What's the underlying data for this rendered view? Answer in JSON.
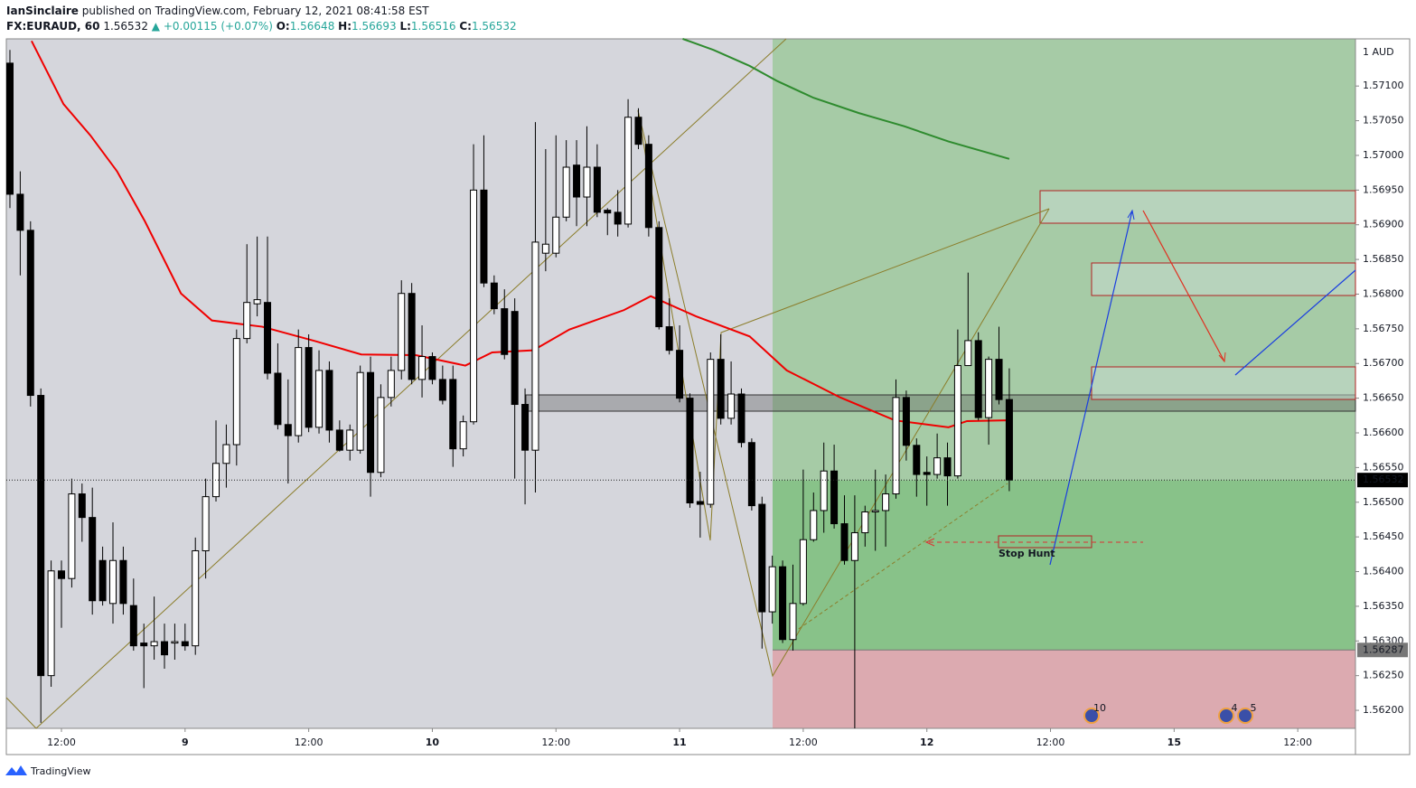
{
  "header": {
    "author": "IanSinclaire",
    "published": "published on TradingView.com, February 12, 2021 08:41:58 EST",
    "symbol": "FX:EURAUD, 60",
    "last": "1.56532",
    "change": "+0.00115 (+0.07%)",
    "ohlc": [
      {
        "key": "O:",
        "val": "1.56648"
      },
      {
        "key": "H:",
        "val": "1.56693"
      },
      {
        "key": "L:",
        "val": "1.56516"
      },
      {
        "key": "C:",
        "val": "1.56532"
      }
    ]
  },
  "chart_data": {
    "type": "candlestick",
    "open": [
      1.57133,
      1.56944,
      1.56892,
      1.56654,
      1.5625,
      1.56401,
      1.5639,
      1.56512,
      1.56478,
      1.56416,
      1.56354,
      1.56416,
      1.56351,
      1.56297,
      1.56293,
      1.56299,
      1.56297,
      1.56299,
      1.56293,
      1.5643,
      1.56508,
      1.56556,
      1.56583,
      1.56736,
      1.56786,
      1.56788,
      1.56686,
      1.56612,
      1.56596,
      1.56723,
      1.56608,
      1.5669,
      1.56604,
      1.56575,
      1.56575,
      1.56687,
      1.56543,
      1.56651,
      1.5669,
      1.56801,
      1.56677,
      1.5671,
      1.56677,
      1.56677,
      1.56577,
      1.56616,
      1.5695,
      1.56816,
      1.56779,
      1.56775,
      1.56641,
      1.56575,
      1.56859,
      1.56859,
      1.56911,
      1.56986,
      1.5694,
      1.56983,
      1.56921,
      1.56918,
      1.56901,
      1.57055,
      1.57016,
      1.56896,
      1.56753,
      1.56719,
      1.5665,
      1.56501,
      1.56497,
      1.56706,
      1.56621,
      1.56656,
      1.56586,
      1.56497,
      1.56342,
      1.56407,
      1.56302,
      1.56354,
      1.56446,
      1.56488,
      1.56545,
      1.56469,
      1.56416,
      1.56456,
      1.56486,
      1.56488,
      1.56512,
      1.56651,
      1.56582,
      1.56543,
      1.5654,
      1.56564,
      1.56538,
      1.56697,
      1.56733,
      1.56622,
      1.56706,
      1.56648
    ],
    "high": [
      1.57152,
      1.56977,
      1.56905,
      1.56664,
      1.56416,
      1.56416,
      1.56534,
      1.56527,
      1.56521,
      1.56436,
      1.56471,
      1.56436,
      1.5639,
      1.56325,
      1.56364,
      1.56325,
      1.56325,
      1.56325,
      1.56449,
      1.56534,
      1.56618,
      1.56612,
      1.56749,
      1.56872,
      1.56883,
      1.56883,
      1.56729,
      1.56677,
      1.56749,
      1.56742,
      1.56719,
      1.56703,
      1.56618,
      1.56612,
      1.56697,
      1.5671,
      1.5667,
      1.5671,
      1.5682,
      1.56816,
      1.56755,
      1.56716,
      1.56697,
      1.56697,
      1.56625,
      1.57016,
      1.57029,
      1.56827,
      1.56807,
      1.56794,
      1.56664,
      1.57048,
      1.57009,
      1.57029,
      1.57022,
      1.57022,
      1.57042,
      1.57016,
      1.56924,
      1.5695,
      1.57081,
      1.57068,
      1.57029,
      1.56905,
      1.56794,
      1.56755,
      1.56657,
      1.56544,
      1.56716,
      1.56742,
      1.56703,
      1.56664,
      1.56592,
      1.56508,
      1.56423,
      1.56416,
      1.5641,
      1.56547,
      1.56514,
      1.56586,
      1.56583,
      1.5651,
      1.5651,
      1.56495,
      1.56547,
      1.5654,
      1.56677,
      1.56661,
      1.56592,
      1.56566,
      1.56599,
      1.56586,
      1.56749,
      1.56831,
      1.56745,
      1.5671,
      1.56753,
      1.56693
    ],
    "low": [
      1.56924,
      1.56827,
      1.56638,
      1.56182,
      1.56234,
      1.56319,
      1.56377,
      1.56443,
      1.56338,
      1.56351,
      1.56325,
      1.56338,
      1.56286,
      1.56232,
      1.56273,
      1.5626,
      1.56273,
      1.56286,
      1.5628,
      1.5639,
      1.56501,
      1.56521,
      1.56553,
      1.56729,
      1.56768,
      1.56677,
      1.56605,
      1.56527,
      1.56586,
      1.56601,
      1.56599,
      1.56586,
      1.56573,
      1.5656,
      1.5657,
      1.56508,
      1.56536,
      1.56638,
      1.56677,
      1.5667,
      1.56651,
      1.5667,
      1.56641,
      1.56551,
      1.56566,
      1.56612,
      1.5681,
      1.56771,
      1.56706,
      1.56534,
      1.56497,
      1.56514,
      1.56833,
      1.56853,
      1.56905,
      1.56898,
      1.56898,
      1.56911,
      1.56885,
      1.56883,
      1.56896,
      1.57009,
      1.56883,
      1.56749,
      1.56713,
      1.56644,
      1.56492,
      1.56449,
      1.56492,
      1.56612,
      1.56612,
      1.56579,
      1.56488,
      1.56289,
      1.56325,
      1.56297,
      1.56286,
      1.56351,
      1.56443,
      1.56456,
      1.56462,
      1.5641,
      1.56174,
      1.56436,
      1.5643,
      1.56436,
      1.56505,
      1.5656,
      1.56508,
      1.56495,
      1.56534,
      1.56495,
      1.56534,
      1.56697,
      1.56618,
      1.56583,
      1.56641,
      1.56516
    ],
    "close": [
      1.56944,
      1.56892,
      1.56654,
      1.5625,
      1.56401,
      1.5639,
      1.56512,
      1.56478,
      1.56358,
      1.56358,
      1.56416,
      1.56354,
      1.56293,
      1.56293,
      1.56299,
      1.5628,
      1.56299,
      1.56293,
      1.5643,
      1.56508,
      1.56556,
      1.56583,
      1.56736,
      1.56788,
      1.56792,
      1.56686,
      1.56612,
      1.56596,
      1.56723,
      1.56608,
      1.5669,
      1.56604,
      1.56575,
      1.56604,
      1.56687,
      1.56543,
      1.56651,
      1.5669,
      1.56801,
      1.56677,
      1.5671,
      1.56677,
      1.56647,
      1.56577,
      1.56616,
      1.5695,
      1.56816,
      1.56779,
      1.56713,
      1.56641,
      1.56575,
      1.56875,
      1.56872,
      1.56911,
      1.56983,
      1.5694,
      1.56983,
      1.56918,
      1.56917,
      1.56901,
      1.57055,
      1.57016,
      1.56896,
      1.56753,
      1.56719,
      1.5665,
      1.56499,
      1.56497,
      1.56706,
      1.56621,
      1.56656,
      1.56586,
      1.56495,
      1.56342,
      1.56407,
      1.56302,
      1.56354,
      1.56446,
      1.56488,
      1.56545,
      1.56469,
      1.56416,
      1.56456,
      1.56486,
      1.56488,
      1.56512,
      1.56651,
      1.56582,
      1.5654,
      1.5654,
      1.56564,
      1.56538,
      1.56697,
      1.56733,
      1.56622,
      1.56706,
      1.56648,
      1.56532
    ],
    "up_color": "#ffffff",
    "down_color": "#000000",
    "lines": [
      {
        "color": "#f00000",
        "x": [
          2.1,
          5.2,
          7.8,
          10.4,
          13.1,
          16.6,
          19.6,
          24.5,
          29.7,
          34.1,
          39.4,
          44.2,
          46.8,
          50.8,
          54.3,
          59.6,
          62.2,
          66.6,
          71.8,
          75.4,
          80.6,
          85.9,
          91.1,
          92.9,
          96.8
        ],
        "values": [
          1.57165,
          1.57074,
          1.57029,
          1.56977,
          1.56905,
          1.56801,
          1.56762,
          1.56753,
          1.56732,
          1.56713,
          1.56712,
          1.56697,
          1.56716,
          1.56719,
          1.56749,
          1.56777,
          1.56797,
          1.56768,
          1.56739,
          1.5669,
          1.56651,
          1.56618,
          1.56608,
          1.56617,
          1.56618
        ]
      },
      {
        "color": "#2e8b2e",
        "x": [
          65.3,
          68.3,
          71.8,
          74.5,
          78.0,
          82.4,
          86.8,
          91.1,
          97.0
        ],
        "values": [
          1.57168,
          1.57152,
          1.57129,
          1.57107,
          1.57083,
          1.57061,
          1.57042,
          1.5702,
          1.56995
        ]
      }
    ],
    "xlim": [
      -0.35,
      130.6
    ],
    "xticks": [
      {
        "value": 5,
        "label": "12:00"
      },
      {
        "value": 17,
        "label": "9"
      },
      {
        "value": 29,
        "label": "12:00"
      },
      {
        "value": 41,
        "label": "10"
      },
      {
        "value": 53,
        "label": "12:00"
      },
      {
        "value": 65,
        "label": "11"
      },
      {
        "value": 77,
        "label": "12:00"
      },
      {
        "value": 89,
        "label": "12"
      },
      {
        "value": 101,
        "label": "12:00"
      },
      {
        "value": 113,
        "label": "15"
      },
      {
        "value": 125,
        "label": "12:00"
      }
    ],
    "ylim": [
      1.56174,
      1.57168
    ],
    "yticks": [
      {
        "value": 1.571,
        "label": "1.57100"
      },
      {
        "value": 1.5705,
        "label": "1.57050"
      },
      {
        "value": 1.57,
        "label": "1.57000"
      },
      {
        "value": 1.5695,
        "label": "1.56950"
      },
      {
        "value": 1.569,
        "label": "1.56900"
      },
      {
        "value": 1.5685,
        "label": "1.56850"
      },
      {
        "value": 1.568,
        "label": "1.56800"
      },
      {
        "value": 1.5675,
        "label": "1.56750"
      },
      {
        "value": 1.567,
        "label": "1.56700"
      },
      {
        "value": 1.5665,
        "label": "1.56650"
      },
      {
        "value": 1.566,
        "label": "1.56600"
      },
      {
        "value": 1.5655,
        "label": "1.56550"
      },
      {
        "value": 1.565,
        "label": "1.56500"
      },
      {
        "value": 1.5645,
        "label": "1.56450"
      },
      {
        "value": 1.564,
        "label": "1.56400"
      },
      {
        "value": 1.5635,
        "label": "1.56350"
      },
      {
        "value": 1.563,
        "label": "1.56300"
      },
      {
        "value": 1.5625,
        "label": "1.56250"
      },
      {
        "value": 1.562,
        "label": "1.56200"
      }
    ],
    "currency": "1 AUD",
    "price_labels": [
      {
        "value": 1.56532,
        "label": "1.56532"
      },
      {
        "value": 1.56287,
        "label": "1.56287"
      }
    ],
    "annotation": "Stop Hunt",
    "events": [
      10,
      4,
      5
    ]
  },
  "footer": {
    "brand": "TradingView"
  }
}
